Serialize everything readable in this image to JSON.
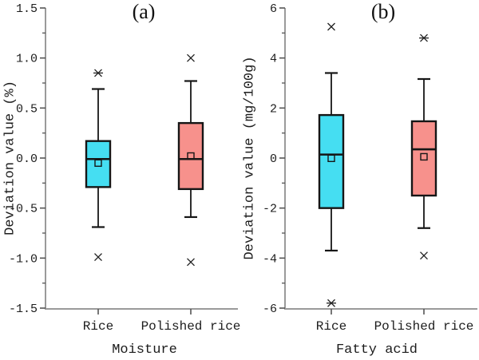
{
  "colors": {
    "background": "#ffffff",
    "axis_line": "#9a9a9a",
    "tick_mark": "#555555",
    "tick_label_text": "#1c1c1c",
    "box_stroke": "#161616",
    "outlier_marker": "#222222",
    "rice_box_fill": "#45DEF2",
    "polished_rice_box_fill": "#F7918C"
  },
  "chart_data": [
    {
      "type": "box",
      "panel_label": "(a)",
      "xlabel": "Moisture",
      "ylabel": "Deviation value (%)",
      "ylim": [
        -1.5,
        1.5
      ],
      "yticks": [
        1.5,
        1.0,
        0.5,
        0.0,
        -0.5,
        -1.0,
        -1.5
      ],
      "ytick_labels": [
        "1.5",
        "1.0",
        "0.5",
        "0.0",
        "-0.5",
        "-1.0",
        "-1.5"
      ],
      "minor_yticks": [
        1.25,
        0.75,
        0.25,
        -0.25,
        -0.75,
        -1.25
      ],
      "grid": false,
      "legend": "none",
      "categories": [
        "Rice",
        "Polished rice"
      ],
      "series": [
        {
          "name": "Rice",
          "color": "#45DEF2",
          "whisker_low": -0.69,
          "q1": -0.29,
          "median": -0.01,
          "q3": 0.17,
          "whisker_high": 0.69,
          "mean": -0.05,
          "outliers": [
            {
              "value": 0.85,
              "marker": "x-dash"
            },
            {
              "value": -0.99,
              "marker": "x"
            }
          ]
        },
        {
          "name": "Polished rice",
          "color": "#F7918C",
          "whisker_low": -0.59,
          "q1": -0.31,
          "median": -0.01,
          "q3": 0.35,
          "whisker_high": 0.77,
          "mean": 0.02,
          "outliers": [
            {
              "value": 1.0,
              "marker": "x"
            },
            {
              "value": -1.04,
              "marker": "x"
            }
          ]
        }
      ]
    },
    {
      "type": "box",
      "panel_label": "(b)",
      "xlabel": "Fatty acid",
      "ylabel": "Deviation value (mg/100g)",
      "ylim": [
        -6,
        6
      ],
      "yticks": [
        6,
        4,
        2,
        0,
        -2,
        -4,
        -6
      ],
      "ytick_labels": [
        "6",
        "4",
        "2",
        "0",
        "-2",
        "-4",
        "-6"
      ],
      "minor_yticks": [
        5,
        3,
        1,
        -1,
        -3,
        -5
      ],
      "grid": false,
      "legend": "none",
      "categories": [
        "Rice",
        "Polished rice"
      ],
      "series": [
        {
          "name": "Rice",
          "color": "#45DEF2",
          "whisker_low": -3.7,
          "q1": -2.0,
          "median": 0.14,
          "q3": 1.72,
          "whisker_high": 3.4,
          "mean": -0.01,
          "outliers": [
            {
              "value": 5.25,
              "marker": "x"
            },
            {
              "value": -5.8,
              "marker": "x-dash"
            }
          ]
        },
        {
          "name": "Polished rice",
          "color": "#F7918C",
          "whisker_low": -2.8,
          "q1": -1.5,
          "median": 0.35,
          "q3": 1.47,
          "whisker_high": 3.16,
          "mean": 0.05,
          "outliers": [
            {
              "value": 4.8,
              "marker": "x-dash"
            },
            {
              "value": -3.9,
              "marker": "x"
            }
          ]
        }
      ]
    }
  ]
}
